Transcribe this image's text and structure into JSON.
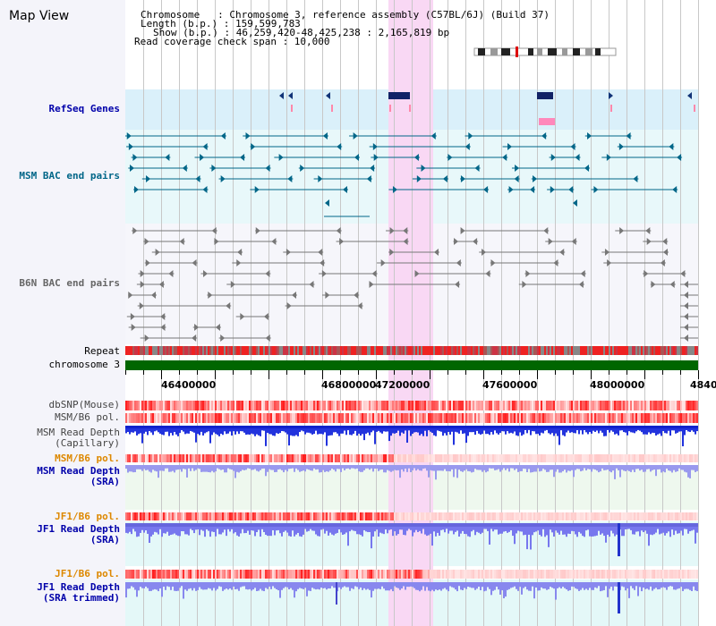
{
  "title": "Map View",
  "info": {
    "chromosome": "Chromosome   : Chromosome 3, reference assembly (C57BL/6J) (Build 37)",
    "length": "Length (b.p.) : 159,599,783",
    "show": "Show (b.p.) : 46,259,420-48,425,238 : 2,165,819 bp",
    "span": "Read coverage check span : 10,000"
  },
  "tracks": {
    "refseq": {
      "label": "RefSeq Genes",
      "color": "#0000aa"
    },
    "msm_bac": {
      "label": "MSM BAC end pairs",
      "color": "#006688"
    },
    "b6n_bac": {
      "label": "B6N BAC end pairs",
      "color": "#666666"
    },
    "repeat": {
      "label": "Repeat"
    },
    "chrom": {
      "label": "chromosome 3"
    },
    "dbsnp": {
      "label": "dbSNP(Mouse)"
    },
    "msm_pol": {
      "label": "MSM/B6 pol."
    },
    "msm_depth_cap": {
      "label": "MSM Read Depth\n(Capillary)"
    },
    "msm_pol2": {
      "label": "MSM/B6 pol."
    },
    "msm_depth_sra": {
      "label": "MSM Read Depth\n(SRA)"
    },
    "jf1_pol": {
      "label": "JF1/B6 pol."
    },
    "jf1_depth_sra": {
      "label": "JF1 Read Depth\n(SRA)"
    },
    "jf1_pol2": {
      "label": "JF1/B6 pol."
    },
    "jf1_depth_trim": {
      "label": "JF1 Read Depth\n(SRA trimmed)"
    }
  },
  "axis": {
    "ticks": [
      "46400000",
      "46800000",
      "47200000",
      "47600000",
      "48000000",
      "4840"
    ]
  },
  "colors": {
    "highlight": "#f9d8f4",
    "chromosome": "#006600",
    "depth": "#5555ee",
    "pol": "#ee3333"
  }
}
